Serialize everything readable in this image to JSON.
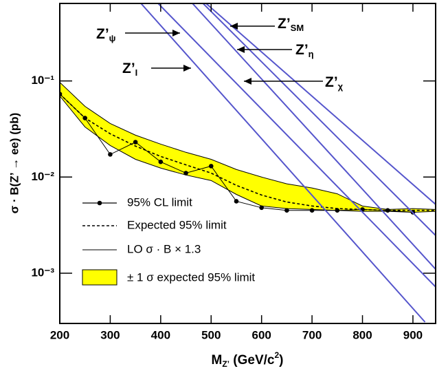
{
  "chart_data": {
    "type": "line",
    "y_label": "σ · B(Z’ → ee) (pb)",
    "x_label": [
      "M",
      "Z’",
      " (GeV/c",
      "2",
      ")"
    ],
    "xlim": [
      200,
      945
    ],
    "ylim": [
      0.0003,
      0.64
    ],
    "log_y": true,
    "xticks": [
      200,
      300,
      400,
      500,
      600,
      700,
      800,
      900
    ],
    "yticks": [
      {
        "value": 0.001,
        "label": "10⁻³"
      },
      {
        "value": 0.01,
        "label": "10⁻²"
      },
      {
        "value": 0.1,
        "label": "10⁻¹"
      }
    ],
    "band": {
      "name": "± 1 σ expected 95% limit",
      "color": "#ffff00",
      "x": [
        200,
        250,
        300,
        350,
        400,
        450,
        500,
        550,
        600,
        650,
        700,
        750,
        800,
        850,
        900,
        945
      ],
      "upper": [
        0.0968,
        0.0544,
        0.0361,
        0.0273,
        0.022,
        0.0181,
        0.0153,
        0.012,
        0.01,
        0.0085,
        0.0077,
        0.0067,
        0.005,
        0.0046,
        0.0047,
        0.0046
      ],
      "lower": [
        0.0697,
        0.0332,
        0.0213,
        0.0153,
        0.0124,
        0.0105,
        0.0092,
        0.0066,
        0.005,
        0.0047,
        0.0046,
        0.0045,
        0.0044,
        0.0044,
        0.0043,
        0.0044
      ]
    },
    "series": [
      {
        "name": "95% CL limit",
        "color": "#000000",
        "markers": true,
        "x": [
          200,
          250,
          300,
          350,
          400,
          450,
          500,
          550,
          600,
          650,
          700,
          750,
          800,
          850,
          900
        ],
        "values": [
          0.0731,
          0.0411,
          0.0172,
          0.0231,
          0.0144,
          0.011,
          0.013,
          0.0056,
          0.0048,
          0.0045,
          0.0045,
          0.0045,
          0.0046,
          0.0045,
          0.0043
        ]
      },
      {
        "name": "Expected 95% limit",
        "color": "#000000",
        "dashed": true,
        "x": [
          200,
          250,
          300,
          350,
          400,
          450,
          500,
          550,
          600,
          650,
          700,
          750,
          800,
          850,
          900,
          945
        ],
        "values": [
          0.0731,
          0.0411,
          0.0282,
          0.021,
          0.0164,
          0.0134,
          0.011,
          0.0082,
          0.0065,
          0.0055,
          0.005,
          0.0047,
          0.0046,
          0.0045,
          0.0045,
          0.0045
        ]
      }
    ],
    "theory_legend": "LO σ · B × 1.3",
    "theory": [
      {
        "label": "Z’",
        "sub": "ψ",
        "color": "#5555cc",
        "x": [
          395,
          945
        ],
        "values": [
          0.64,
          0.00072
        ]
      },
      {
        "label": "Z’",
        "sub": "I",
        "color": "#5555cc",
        "x": [
          361,
          924
        ],
        "values": [
          0.64,
          0.00031
        ]
      },
      {
        "label": "Z’",
        "sub": "SM",
        "color": "#5555cc",
        "x": [
          490,
          945
        ],
        "values": [
          0.64,
          0.0052
        ]
      },
      {
        "label": "Z’",
        "sub": "η",
        "color": "#5555cc",
        "x": [
          484,
          945
        ],
        "values": [
          0.64,
          0.00247
        ]
      },
      {
        "label": "Z’",
        "sub": "χ",
        "color": "#5555cc",
        "x": [
          463,
          945
        ],
        "values": [
          0.64,
          0.0011
        ]
      }
    ]
  }
}
